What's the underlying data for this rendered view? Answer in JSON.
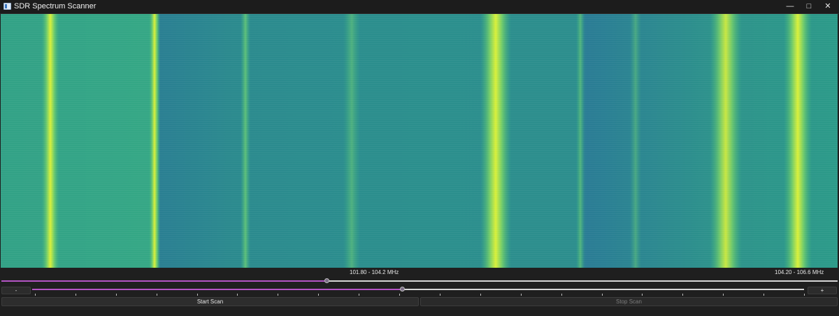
{
  "window": {
    "title": "SDR Spectrum Scanner",
    "icons": {
      "app": "window-app-icon",
      "minimize": "minimize-icon",
      "maximize": "maximize-icon",
      "close": "close-icon"
    }
  },
  "waterfall": {
    "colors": {
      "background": "#2a8f8c",
      "dark_band": "#2a7d95",
      "signal_mid": "#5fc88a",
      "signal_peak": "#d4f03a"
    }
  },
  "range": {
    "left_label": "101.80 - 104.2 MHz",
    "right_label": "104.20 - 106.6 MHz"
  },
  "sliders": {
    "top": {
      "value_fraction": 0.39
    },
    "bottom": {
      "value_fraction": 0.48
    },
    "accent": "#b455c5"
  },
  "buttons": {
    "minus": "-",
    "plus": "+",
    "start_scan": "Start Scan",
    "stop_scan": "Stop Scan"
  }
}
